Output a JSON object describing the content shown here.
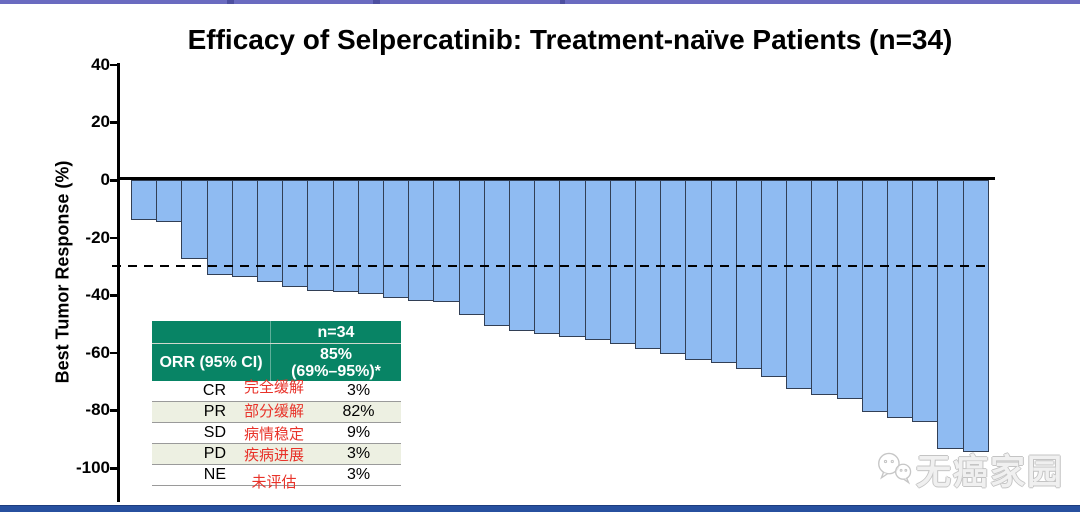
{
  "chart_data": {
    "type": "bar",
    "subtype": "waterfall",
    "title": "Efficacy of Selpercatinib: Treatment-naïve Patients (n=34)",
    "ylabel": "Best Tumor Response (%)",
    "ylim": [
      -110,
      40
    ],
    "yticks": [
      40,
      20,
      0,
      -20,
      -40,
      -60,
      -80,
      -100
    ],
    "reference_line_y": -30,
    "reference_line_style": "dashed",
    "grid": false,
    "legend": false,
    "n_patients": 34,
    "values": [
      -13.5,
      -14,
      -27,
      -32.5,
      -33,
      -35,
      -36.5,
      -38,
      -38.5,
      -39,
      -40.5,
      -41.5,
      -42,
      -46.5,
      -50,
      -52,
      -53,
      -54,
      -55,
      -56.5,
      -58,
      -60,
      -62,
      -63,
      -65,
      -68,
      -72,
      -74,
      -75.5,
      -80,
      -82,
      -83.5,
      -93,
      -94
    ]
  },
  "table": {
    "header": {
      "n_label": "n=34",
      "orr_label": "ORR (95% CI)",
      "orr_value_line1": "85%",
      "orr_value_line2": "(69%–95%)*"
    },
    "rows": [
      {
        "code": "CR",
        "zh": "完全缓解",
        "value": "3%"
      },
      {
        "code": "PR",
        "zh": "部分缓解",
        "value": "82%"
      },
      {
        "code": "SD",
        "zh": "病情稳定",
        "value": "9%"
      },
      {
        "code": "PD",
        "zh": "疾病进展",
        "value": "3%"
      },
      {
        "code": "NE",
        "zh": "未评估",
        "value": "3%"
      }
    ]
  },
  "watermark": {
    "text": "无癌家园"
  },
  "colors": {
    "bar_fill": "#8fbbf2",
    "bar_border": "#323f55",
    "table_green": "#088465",
    "row_stripe": "#edf0e2",
    "annotation_red": "#e8332a",
    "top_accent_bar": "#6a6bc0",
    "bottom_accent_bar": "#27509f"
  }
}
